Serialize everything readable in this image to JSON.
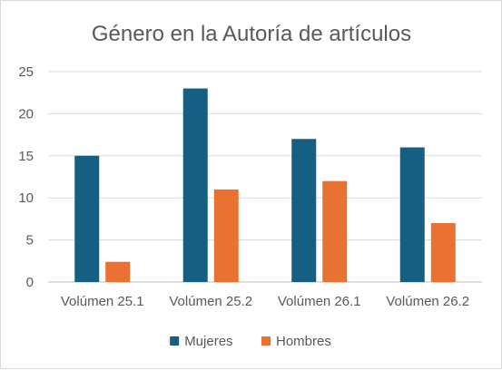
{
  "chart_data": {
    "type": "bar",
    "title": "Género en la Autoría de artículos",
    "categories": [
      "Volúmen 25.1",
      "Volúmen 25.2",
      "Volúmen 26.1",
      "Volúmen 26.2"
    ],
    "series": [
      {
        "name": "Mujeres",
        "values": [
          15,
          23,
          17,
          16
        ],
        "color": "#156082"
      },
      {
        "name": "Hombres",
        "values": [
          2.4,
          11,
          12,
          7
        ],
        "color": "#e97132"
      }
    ],
    "ylim": [
      0,
      25
    ],
    "yticks": [
      0,
      5,
      10,
      15,
      20,
      25
    ],
    "grid": true,
    "legend": "bottom"
  }
}
